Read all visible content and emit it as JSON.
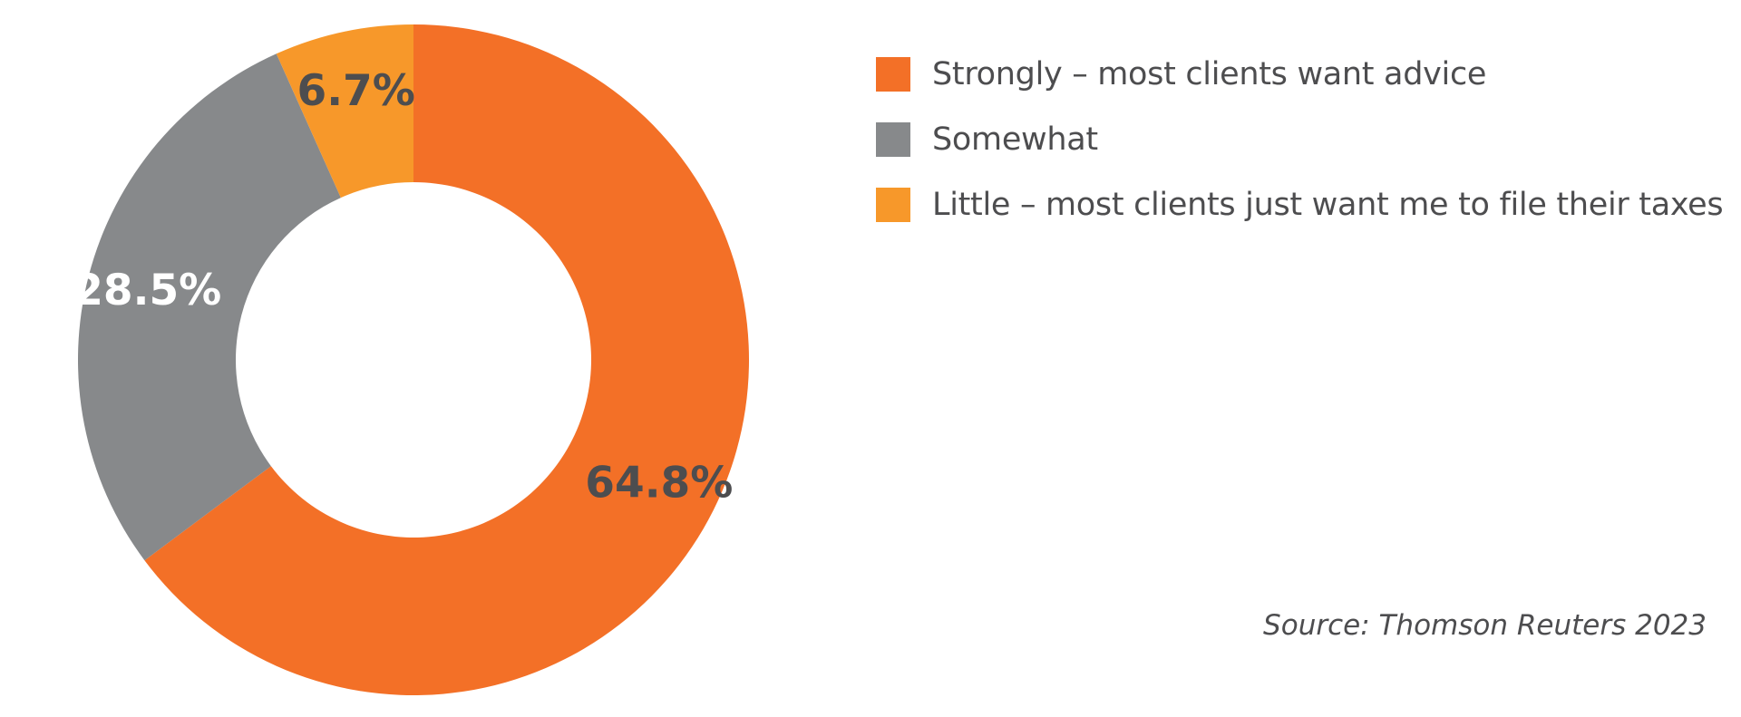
{
  "chart_data": {
    "type": "pie",
    "donut": true,
    "categories": [
      "Strongly – most clients want advice",
      "Somewhat",
      "Little – most clients just want me to file their taxes"
    ],
    "values": [
      64.8,
      28.5,
      6.7
    ],
    "value_labels": [
      "64.8%",
      "28.5%",
      "6.7%"
    ],
    "colors": [
      "#f37027",
      "#87898b",
      "#f7982a"
    ],
    "label_colors": [
      "#4d4d4f",
      "#ffffff",
      "#4d4d4f"
    ],
    "start_angle_deg": 0,
    "direction": "clockwise",
    "legend_position": "top-right",
    "source": "Source: Thomson Reuters 2023"
  }
}
